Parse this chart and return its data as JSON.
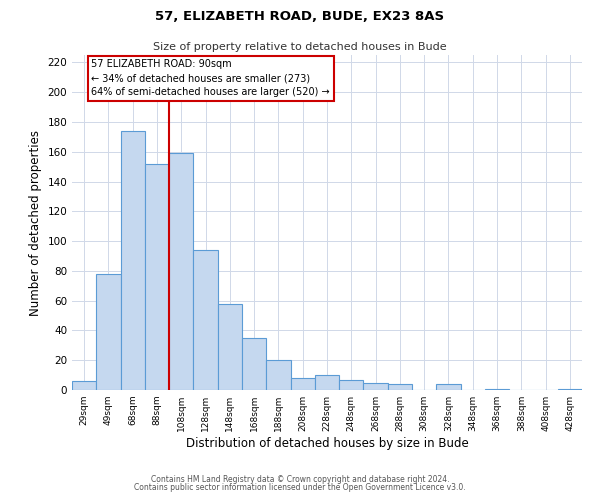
{
  "title": "57, ELIZABETH ROAD, BUDE, EX23 8AS",
  "subtitle": "Size of property relative to detached houses in Bude",
  "xlabel": "Distribution of detached houses by size in Bude",
  "ylabel": "Number of detached properties",
  "footer_line1": "Contains HM Land Registry data © Crown copyright and database right 2024.",
  "footer_line2": "Contains public sector information licensed under the Open Government Licence v3.0.",
  "bar_labels": [
    "29sqm",
    "49sqm",
    "68sqm",
    "88sqm",
    "108sqm",
    "128sqm",
    "148sqm",
    "168sqm",
    "188sqm",
    "208sqm",
    "228sqm",
    "248sqm",
    "268sqm",
    "288sqm",
    "308sqm",
    "328sqm",
    "348sqm",
    "368sqm",
    "388sqm",
    "408sqm",
    "428sqm"
  ],
  "bar_values": [
    6,
    78,
    174,
    152,
    159,
    94,
    58,
    35,
    20,
    8,
    10,
    7,
    5,
    4,
    0,
    4,
    0,
    1,
    0,
    0,
    1
  ],
  "bar_color": "#c5d8ef",
  "bar_edge_color": "#5b9bd5",
  "vline_x": 3.5,
  "vline_color": "#cc0000",
  "annotation_title": "57 ELIZABETH ROAD: 90sqm",
  "annotation_line1": "← 34% of detached houses are smaller (273)",
  "annotation_line2": "64% of semi-detached houses are larger (520) →",
  "annotation_box_color": "#ffffff",
  "annotation_box_edge_color": "#cc0000",
  "ylim": [
    0,
    225
  ],
  "yticks": [
    0,
    20,
    40,
    60,
    80,
    100,
    120,
    140,
    160,
    180,
    200,
    220
  ],
  "background_color": "#ffffff",
  "grid_color": "#d0d8e8",
  "figsize": [
    6.0,
    5.0
  ],
  "dpi": 100
}
